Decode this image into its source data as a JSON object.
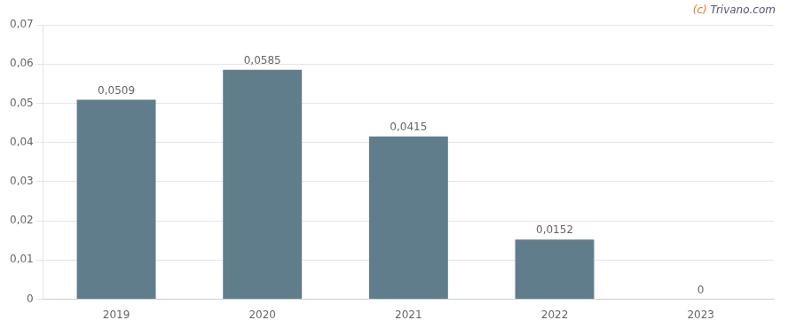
{
  "chart_data": {
    "type": "bar",
    "categories": [
      "2019",
      "2020",
      "2021",
      "2022",
      "2023"
    ],
    "values": [
      0.0509,
      0.0585,
      0.0415,
      0.0152,
      0
    ],
    "value_labels": [
      "0,0509",
      "0,0585",
      "0,0415",
      "0,0152",
      "0"
    ],
    "data_labels": true,
    "color": "#607d8b",
    "ylim": [
      0,
      0.07
    ],
    "yticks": [
      0,
      {
        "value": 0.01,
        "label": "0,01"
      },
      {
        "value": 0.02,
        "label": "0,02"
      },
      {
        "value": 0.03,
        "label": "0,03"
      },
      {
        "value": 0.04,
        "label": "0,04"
      },
      {
        "value": 0.05,
        "label": "0,05"
      },
      {
        "value": 0.06,
        "label": "0,06"
      },
      {
        "value": 0.07,
        "label": "0,07"
      }
    ],
    "grid": true,
    "annotations": [
      {
        "text": "(c)",
        "color": "#e87722"
      },
      {
        "text": "Trivano.com",
        "color": "#555577"
      }
    ]
  }
}
